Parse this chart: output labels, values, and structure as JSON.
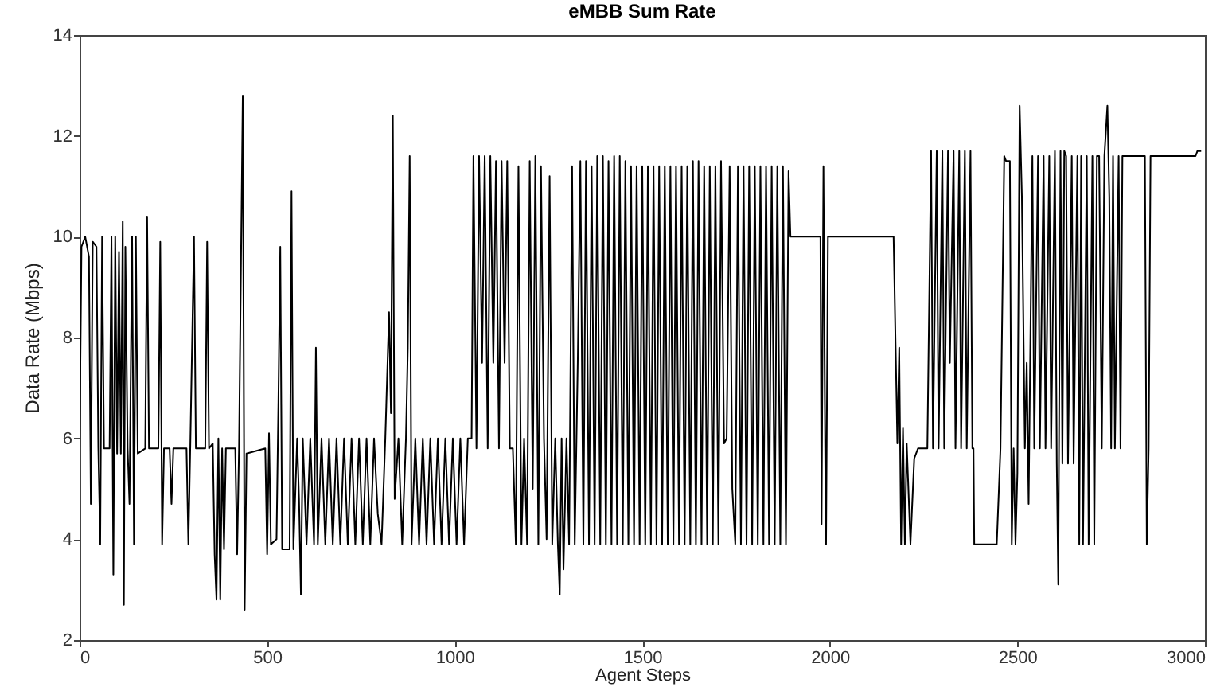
{
  "chart_data": {
    "type": "line",
    "title": "eMBB Sum Rate",
    "xlabel": "Agent Steps",
    "ylabel": "Data Rate (Mbps)",
    "xlim": [
      0,
      3000
    ],
    "xticks": [
      0,
      500,
      1000,
      1500,
      2000,
      2500,
      3000
    ],
    "ylim": [
      2,
      14
    ],
    "yticks": [
      2,
      4,
      6,
      8,
      10,
      12,
      14
    ],
    "grid": false,
    "series": [
      {
        "color": "#000000",
        "x": [
          0,
          5,
          15,
          25,
          30,
          35,
          45,
          50,
          55,
          60,
          65,
          80,
          85,
          90,
          95,
          100,
          105,
          110,
          115,
          118,
          122,
          128,
          133,
          140,
          145,
          150,
          155,
          175,
          180,
          185,
          210,
          215,
          220,
          225,
          240,
          245,
          250,
          285,
          290,
          295,
          305,
          310,
          335,
          340,
          345,
          355,
          360,
          365,
          370,
          375,
          380,
          385,
          390,
          415,
          420,
          425,
          435,
          440,
          445,
          495,
          500,
          505,
          510,
          525,
          530,
          535,
          540,
          560,
          565,
          570,
          580,
          585,
          590,
          595,
          605,
          615,
          625,
          630,
          635,
          645,
          655,
          665,
          675,
          685,
          695,
          705,
          715,
          725,
          735,
          745,
          755,
          765,
          775,
          785,
          795,
          805,
          815,
          825,
          830,
          835,
          840,
          850,
          860,
          870,
          875,
          880,
          885,
          895,
          905,
          915,
          925,
          935,
          945,
          955,
          965,
          975,
          985,
          995,
          1005,
          1015,
          1025,
          1035,
          1045,
          1050,
          1058,
          1065,
          1073,
          1080,
          1088,
          1095,
          1103,
          1110,
          1118,
          1125,
          1133,
          1140,
          1147,
          1155,
          1163,
          1170,
          1178,
          1185,
          1193,
          1200,
          1208,
          1215,
          1223,
          1230,
          1238,
          1245,
          1253,
          1260,
          1268,
          1275,
          1280,
          1285,
          1290,
          1298,
          1305,
          1313,
          1320,
          1328,
          1335,
          1343,
          1350,
          1358,
          1365,
          1373,
          1380,
          1388,
          1395,
          1403,
          1410,
          1418,
          1425,
          1433,
          1440,
          1448,
          1455,
          1463,
          1470,
          1478,
          1485,
          1493,
          1500,
          1508,
          1515,
          1523,
          1530,
          1538,
          1545,
          1553,
          1560,
          1568,
          1575,
          1583,
          1590,
          1598,
          1605,
          1613,
          1620,
          1628,
          1635,
          1643,
          1650,
          1658,
          1665,
          1673,
          1680,
          1688,
          1695,
          1703,
          1710,
          1718,
          1725,
          1733,
          1740,
          1748,
          1755,
          1763,
          1770,
          1778,
          1785,
          1793,
          1800,
          1808,
          1815,
          1823,
          1830,
          1838,
          1845,
          1853,
          1860,
          1868,
          1875,
          1883,
          1890,
          1895,
          1975,
          1978,
          1983,
          1988,
          1990,
          1995,
          2170,
          2172,
          2180,
          2185,
          2190,
          2195,
          2200,
          2205,
          2215,
          2225,
          2235,
          2260,
          2270,
          2275,
          2285,
          2290,
          2300,
          2305,
          2315,
          2320,
          2330,
          2335,
          2345,
          2350,
          2360,
          2365,
          2375,
          2380,
          2383,
          2385,
          2445,
          2455,
          2465,
          2470,
          2480,
          2485,
          2490,
          2495,
          2500,
          2506,
          2512,
          2520,
          2525,
          2530,
          2540,
          2545,
          2555,
          2560,
          2570,
          2575,
          2585,
          2590,
          2600,
          2605,
          2609,
          2615,
          2620,
          2625,
          2630,
          2635,
          2645,
          2650,
          2660,
          2665,
          2670,
          2675,
          2685,
          2690,
          2700,
          2705,
          2712,
          2718,
          2725,
          2732,
          2740,
          2745,
          2750,
          2755,
          2760,
          2770,
          2775,
          2780,
          2840,
          2845,
          2850,
          2855,
          2975,
          2980,
          2990
        ],
        "values": [
          5.8,
          9.8,
          10,
          9.6,
          4.7,
          9.9,
          9.8,
          5.8,
          3.9,
          10,
          5.8,
          5.8,
          10,
          3.3,
          10,
          5.7,
          9.7,
          5.7,
          10.3,
          2.7,
          9.8,
          5.8,
          4.7,
          10,
          3.9,
          10,
          5.7,
          5.8,
          10.4,
          5.8,
          5.8,
          9.9,
          3.9,
          5.8,
          5.8,
          4.7,
          5.8,
          5.8,
          3.9,
          5.8,
          10,
          5.8,
          5.8,
          9.9,
          5.8,
          5.9,
          3.7,
          2.8,
          6,
          2.8,
          5.8,
          3.8,
          5.8,
          5.8,
          3.7,
          5.8,
          12.8,
          2.6,
          5.7,
          5.8,
          3.7,
          6.1,
          3.9,
          4,
          6.7,
          9.8,
          3.8,
          3.8,
          10.9,
          3.8,
          6,
          4.8,
          2.9,
          6,
          3.9,
          6,
          3.9,
          7.8,
          3.9,
          6,
          3.9,
          6,
          3.9,
          6,
          3.9,
          6,
          3.9,
          6,
          3.9,
          6,
          3.9,
          6,
          3.9,
          6,
          4.5,
          3.9,
          6,
          8.5,
          6.5,
          12.4,
          4.8,
          6,
          3.9,
          6,
          7.8,
          11.6,
          3.9,
          6,
          3.9,
          6,
          3.9,
          6,
          3.9,
          6,
          3.9,
          6,
          3.9,
          6,
          3.9,
          6,
          3.9,
          6,
          6,
          11.6,
          5.8,
          11.6,
          7.5,
          11.6,
          5.8,
          11.6,
          7.5,
          11.5,
          5.8,
          11.5,
          7.5,
          11.5,
          5.8,
          5.8,
          3.9,
          11.4,
          3.9,
          6,
          3.9,
          11.5,
          5,
          11.6,
          3.9,
          11.4,
          6,
          4,
          11.2,
          3.9,
          6,
          3.9,
          2.9,
          6,
          3.4,
          6,
          3.9,
          11.4,
          3.9,
          7.5,
          11.5,
          3.9,
          11.5,
          3.9,
          11.4,
          3.9,
          11.6,
          3.9,
          11.6,
          3.9,
          11.5,
          3.9,
          11.6,
          3.9,
          11.6,
          3.9,
          11.5,
          3.9,
          11.4,
          3.9,
          11.4,
          3.9,
          11.4,
          3.9,
          11.4,
          3.9,
          11.4,
          3.9,
          11.4,
          3.9,
          11.4,
          3.9,
          11.4,
          3.9,
          11.4,
          3.9,
          11.4,
          3.9,
          11.4,
          3.9,
          11.5,
          3.9,
          11.5,
          3.9,
          11.4,
          3.9,
          11.4,
          3.9,
          11.4,
          3.9,
          11.5,
          5.9,
          6,
          11.4,
          5,
          3.9,
          11.4,
          3.9,
          11.4,
          3.9,
          11.4,
          3.9,
          11.4,
          3.9,
          11.4,
          3.9,
          11.4,
          3.9,
          11.4,
          3.9,
          11.4,
          3.9,
          11.4,
          3.9,
          11.3,
          10,
          10,
          4.3,
          11.4,
          5.3,
          3.9,
          10,
          10,
          9.2,
          5.9,
          7.8,
          3.9,
          6.2,
          3.9,
          5.9,
          3.9,
          5.6,
          5.8,
          5.8,
          11.7,
          5.8,
          11.7,
          5.8,
          11.7,
          5.8,
          11.7,
          7.5,
          11.7,
          5.8,
          11.7,
          5.8,
          11.7,
          5.8,
          11.7,
          5.8,
          5.8,
          3.9,
          3.9,
          5.8,
          11.6,
          11.5,
          11.5,
          3.9,
          5.8,
          3.9,
          5.3,
          12.6,
          10.8,
          5.8,
          7.5,
          4.7,
          11.6,
          5.8,
          11.6,
          5.8,
          11.6,
          5.8,
          11.6,
          5.8,
          11.7,
          5.5,
          3.1,
          11.7,
          5.5,
          11.7,
          11.6,
          5.5,
          11.6,
          5.5,
          11.6,
          3.9,
          11.6,
          3.9,
          11.6,
          3.9,
          11.6,
          3.9,
          11.6,
          11.6,
          5.8,
          11.6,
          12.6,
          10.8,
          5.8,
          11.6,
          5.8,
          11.6,
          5.8,
          11.6,
          11.6,
          3.9,
          5.8,
          11.6,
          11.6,
          11.7,
          11.7
        ]
      }
    ]
  }
}
